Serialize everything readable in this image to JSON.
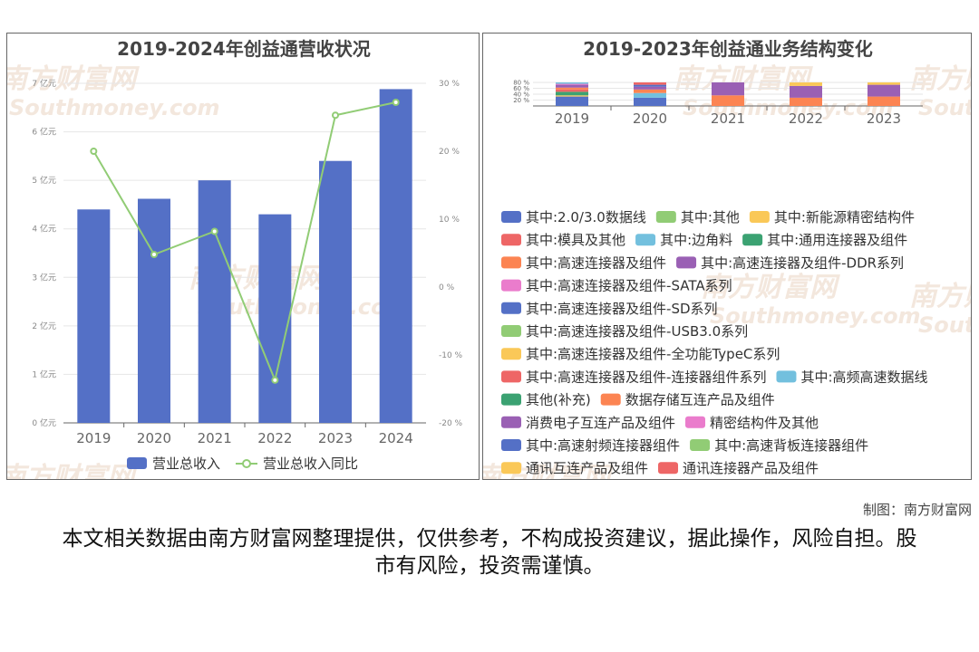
{
  "chart_data": [
    {
      "type": "bar+line",
      "title": "2019-2024年创益通营收状况",
      "categories": [
        "2019",
        "2020",
        "2021",
        "2022",
        "2023",
        "2024"
      ],
      "series": [
        {
          "name": "营业总收入",
          "type": "bar",
          "values": [
            4.4,
            4.62,
            5.0,
            4.3,
            5.4,
            6.88
          ]
        },
        {
          "name": "营业总收入同比",
          "type": "line",
          "values": [
            20.0,
            4.8,
            8.2,
            -13.7,
            25.3,
            27.2
          ]
        }
      ],
      "y_left": {
        "ticks": [
          "0 亿元",
          "1 亿元",
          "2 亿元",
          "3 亿元",
          "4 亿元",
          "5 亿元",
          "6 亿元",
          "7 亿元"
        ],
        "ylim": [
          0,
          7
        ]
      },
      "y_right": {
        "ticks": [
          "-20 %",
          "-10 %",
          "0 %",
          "10 %",
          "20 %",
          "30 %"
        ],
        "ylim": [
          -20,
          30
        ]
      },
      "colors": {
        "bar": "#5470c6",
        "line": "#91cc75"
      },
      "legend_position": "bottom",
      "grid": true
    },
    {
      "type": "stacked-bar",
      "title": "2019-2023年创益通业务结构变化",
      "categories": [
        "2019",
        "2020",
        "2021",
        "2022",
        "2023"
      ],
      "y_ticks": [
        "20 %",
        "40 %",
        "60 %",
        "80 %"
      ],
      "ylim": [
        0,
        100
      ],
      "segments": [
        [
          {
            "color": "#5470c6",
            "value": 40
          },
          {
            "color": "#fac858",
            "value": 5
          },
          {
            "color": "#3ba272",
            "value": 15
          },
          {
            "color": "#ee6666",
            "value": 10
          },
          {
            "color": "#fc8452",
            "value": 8
          },
          {
            "color": "#9a60b4",
            "value": 12
          },
          {
            "color": "#ea7ccc",
            "value": 4
          },
          {
            "color": "#73c0de",
            "value": 6
          }
        ],
        [
          {
            "color": "#5470c6",
            "value": 35
          },
          {
            "color": "#73c0de",
            "value": 20
          },
          {
            "color": "#fc8452",
            "value": 15
          },
          {
            "color": "#9a60b4",
            "value": 12
          },
          {
            "color": "#5470c6",
            "value": 8
          },
          {
            "color": "#ee6666",
            "value": 10
          }
        ],
        [
          {
            "color": "#fc8452",
            "value": 45
          },
          {
            "color": "#9a60b4",
            "value": 55
          }
        ],
        [
          {
            "color": "#fc8452",
            "value": 35
          },
          {
            "color": "#9a60b4",
            "value": 50
          },
          {
            "color": "#fac858",
            "value": 15
          }
        ],
        [
          {
            "color": "#fc8452",
            "value": 40
          },
          {
            "color": "#9a60b4",
            "value": 50
          },
          {
            "color": "#fac858",
            "value": 10
          }
        ]
      ],
      "legend": [
        {
          "name": "其中:2.0/3.0数据线",
          "color": "#5470c6"
        },
        {
          "name": "其中:其他",
          "color": "#91cc75"
        },
        {
          "name": "其中:新能源精密结构件",
          "color": "#fac858"
        },
        {
          "name": "其中:模具及其他",
          "color": "#ee6666"
        },
        {
          "name": "其中:边角料",
          "color": "#73c0de"
        },
        {
          "name": "其中:通用连接器及组件",
          "color": "#3ba272"
        },
        {
          "name": "其中:高速连接器及组件",
          "color": "#fc8452"
        },
        {
          "name": "其中:高速连接器及组件-DDR系列",
          "color": "#9a60b4"
        },
        {
          "name": "其中:高速连接器及组件-SATA系列",
          "color": "#ea7ccc"
        },
        {
          "name": "其中:高速连接器及组件-SD系列",
          "color": "#5470c6"
        },
        {
          "name": "其中:高速连接器及组件-USB3.0系列",
          "color": "#91cc75"
        },
        {
          "name": "其中:高速连接器及组件-全功能TypeC系列",
          "color": "#fac858"
        },
        {
          "name": "其中:高速连接器及组件-连接器组件系列",
          "color": "#ee6666"
        },
        {
          "name": "其中:高频高速数据线",
          "color": "#73c0de"
        },
        {
          "name": "其他(补充)",
          "color": "#3ba272"
        },
        {
          "name": "数据存储互连产品及组件",
          "color": "#fc8452"
        },
        {
          "name": "消费电子互连产品及组件",
          "color": "#9a60b4"
        },
        {
          "name": "精密结构件及其他",
          "color": "#ea7ccc"
        },
        {
          "name": "其中:高速射频连接器组件",
          "color": "#5470c6"
        },
        {
          "name": "其中:高速背板连接器组件",
          "color": "#91cc75"
        },
        {
          "name": "通讯互连产品及组件",
          "color": "#fac858"
        },
        {
          "name": "通讯连接器产品及组件",
          "color": "#ee6666"
        }
      ],
      "legend_rows": [
        [
          0,
          1,
          2
        ],
        [
          3,
          4,
          5
        ],
        [
          6,
          7
        ],
        [
          8
        ],
        [
          9
        ],
        [
          10
        ],
        [
          11
        ],
        [
          12,
          13
        ],
        [
          14,
          15
        ],
        [
          16,
          17
        ],
        [
          18,
          19
        ],
        [
          20,
          21
        ]
      ],
      "legend_position": "bottom"
    }
  ],
  "watermark": {
    "cn": "南方财富网",
    "en": "Southmoney.com"
  },
  "footer": {
    "credit": "制图：南方财富网",
    "disclaimer": "本文相关数据由南方财富网整理提供，仅供参考，不构成投资建议，据此操作，风险自担。股市有风险，投资需谨慎。"
  }
}
